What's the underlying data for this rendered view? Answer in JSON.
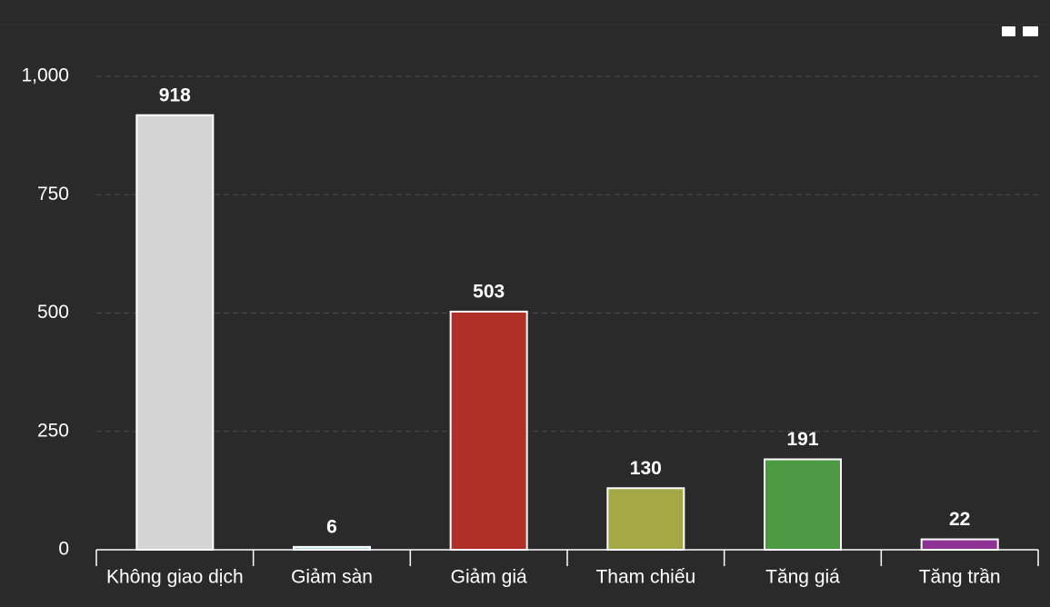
{
  "chart_data": {
    "type": "bar",
    "categories": [
      "Không giao dịch",
      "Giảm sàn",
      "Giảm giá",
      "Tham chiếu",
      "Tăng giá",
      "Tăng trần"
    ],
    "values": [
      918,
      6,
      503,
      130,
      191,
      22
    ],
    "colors": [
      "#d4d4d4",
      "#a9d3ea",
      "#b03028",
      "#a4a845",
      "#4e9a44",
      "#8e3294"
    ],
    "ylim": [
      0,
      1000
    ],
    "yticks": [
      0,
      250,
      500,
      750,
      {
        "value": 1000,
        "label": "1,000"
      }
    ],
    "grid": true
  }
}
